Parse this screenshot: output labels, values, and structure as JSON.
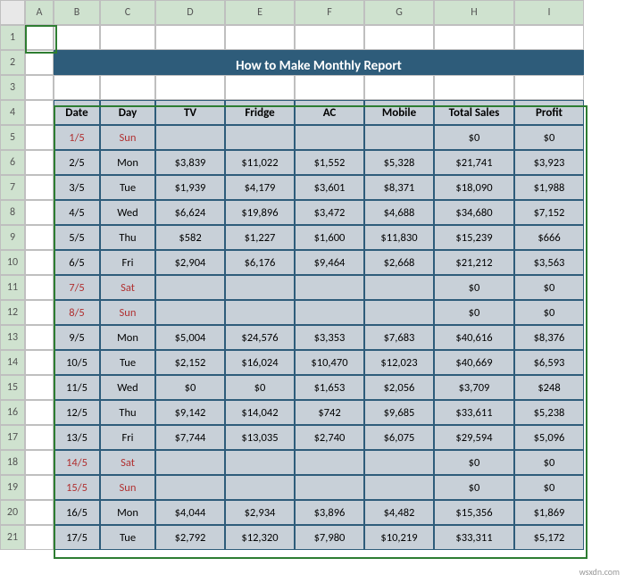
{
  "colHeaders": [
    "A",
    "B",
    "C",
    "D",
    "E",
    "F",
    "G",
    "H",
    "I"
  ],
  "rowHeaders": [
    "1",
    "2",
    "3",
    "4",
    "5",
    "6",
    "7",
    "8",
    "9",
    "10",
    "11",
    "12",
    "13",
    "14",
    "15",
    "16",
    "17",
    "18",
    "19",
    "20",
    "21"
  ],
  "title": "How to Make Monthly Report",
  "tableHeaders": [
    "Date",
    "Day",
    "TV",
    "Fridge",
    "AC",
    "Mobile",
    "Total Sales",
    "Profit"
  ],
  "rows": [
    {
      "date": "1/5",
      "day": "Sun",
      "tv": "",
      "fridge": "",
      "ac": "",
      "mobile": "",
      "total": "$0",
      "profit": "$0",
      "weekend": true
    },
    {
      "date": "2/5",
      "day": "Mon",
      "tv": "$3,839",
      "fridge": "$11,022",
      "ac": "$1,552",
      "mobile": "$5,328",
      "total": "$21,741",
      "profit": "$3,923",
      "weekend": false
    },
    {
      "date": "3/5",
      "day": "Tue",
      "tv": "$1,939",
      "fridge": "$4,179",
      "ac": "$3,601",
      "mobile": "$8,371",
      "total": "$18,090",
      "profit": "$1,988",
      "weekend": false
    },
    {
      "date": "4/5",
      "day": "Wed",
      "tv": "$6,624",
      "fridge": "$19,896",
      "ac": "$3,472",
      "mobile": "$4,688",
      "total": "$34,680",
      "profit": "$7,152",
      "weekend": false
    },
    {
      "date": "5/5",
      "day": "Thu",
      "tv": "$582",
      "fridge": "$1,227",
      "ac": "$1,600",
      "mobile": "$11,830",
      "total": "$15,239",
      "profit": "$666",
      "weekend": false
    },
    {
      "date": "6/5",
      "day": "Fri",
      "tv": "$2,904",
      "fridge": "$6,176",
      "ac": "$9,464",
      "mobile": "$2,668",
      "total": "$21,212",
      "profit": "$3,563",
      "weekend": false
    },
    {
      "date": "7/5",
      "day": "Sat",
      "tv": "",
      "fridge": "",
      "ac": "",
      "mobile": "",
      "total": "$0",
      "profit": "$0",
      "weekend": true
    },
    {
      "date": "8/5",
      "day": "Sun",
      "tv": "",
      "fridge": "",
      "ac": "",
      "mobile": "",
      "total": "$0",
      "profit": "$0",
      "weekend": true
    },
    {
      "date": "9/5",
      "day": "Mon",
      "tv": "$5,004",
      "fridge": "$24,576",
      "ac": "$3,353",
      "mobile": "$7,683",
      "total": "$40,616",
      "profit": "$8,376",
      "weekend": false
    },
    {
      "date": "10/5",
      "day": "Tue",
      "tv": "$2,152",
      "fridge": "$16,024",
      "ac": "$10,470",
      "mobile": "$12,023",
      "total": "$40,669",
      "profit": "$6,593",
      "weekend": false
    },
    {
      "date": "11/5",
      "day": "Wed",
      "tv": "$0",
      "fridge": "$0",
      "ac": "$1,653",
      "mobile": "$2,056",
      "total": "$3,709",
      "profit": "$248",
      "weekend": false
    },
    {
      "date": "12/5",
      "day": "Thu",
      "tv": "$9,142",
      "fridge": "$14,042",
      "ac": "$742",
      "mobile": "$9,685",
      "total": "$33,611",
      "profit": "$5,238",
      "weekend": false
    },
    {
      "date": "13/5",
      "day": "Fri",
      "tv": "$7,744",
      "fridge": "$13,035",
      "ac": "$2,740",
      "mobile": "$6,075",
      "total": "$29,594",
      "profit": "$5,096",
      "weekend": false
    },
    {
      "date": "14/5",
      "day": "Sat",
      "tv": "",
      "fridge": "",
      "ac": "",
      "mobile": "",
      "total": "$0",
      "profit": "$0",
      "weekend": true
    },
    {
      "date": "15/5",
      "day": "Sun",
      "tv": "",
      "fridge": "",
      "ac": "",
      "mobile": "",
      "total": "$0",
      "profit": "$0",
      "weekend": true
    },
    {
      "date": "16/5",
      "day": "Mon",
      "tv": "$4,044",
      "fridge": "$2,934",
      "ac": "$3,896",
      "mobile": "$4,482",
      "total": "$15,356",
      "profit": "$1,869",
      "weekend": false
    },
    {
      "date": "17/5",
      "day": "Tue",
      "tv": "$2,792",
      "fridge": "$12,320",
      "ac": "$7,980",
      "mobile": "$10,219",
      "total": "$33,311",
      "profit": "$5,172",
      "weekend": false
    }
  ],
  "colors": {
    "banner_bg": "#2e5c7a",
    "banner_fg": "#ffffff",
    "cell_bg": "#c8d0d8",
    "cell_border": "#2e5c7a",
    "header_bg": "#e8e8e8",
    "weekend_fg": "#b03030",
    "select_outline": "#2e7d32",
    "select_header_bg": "#cfe2cf"
  },
  "watermark": "wsxdn.com"
}
